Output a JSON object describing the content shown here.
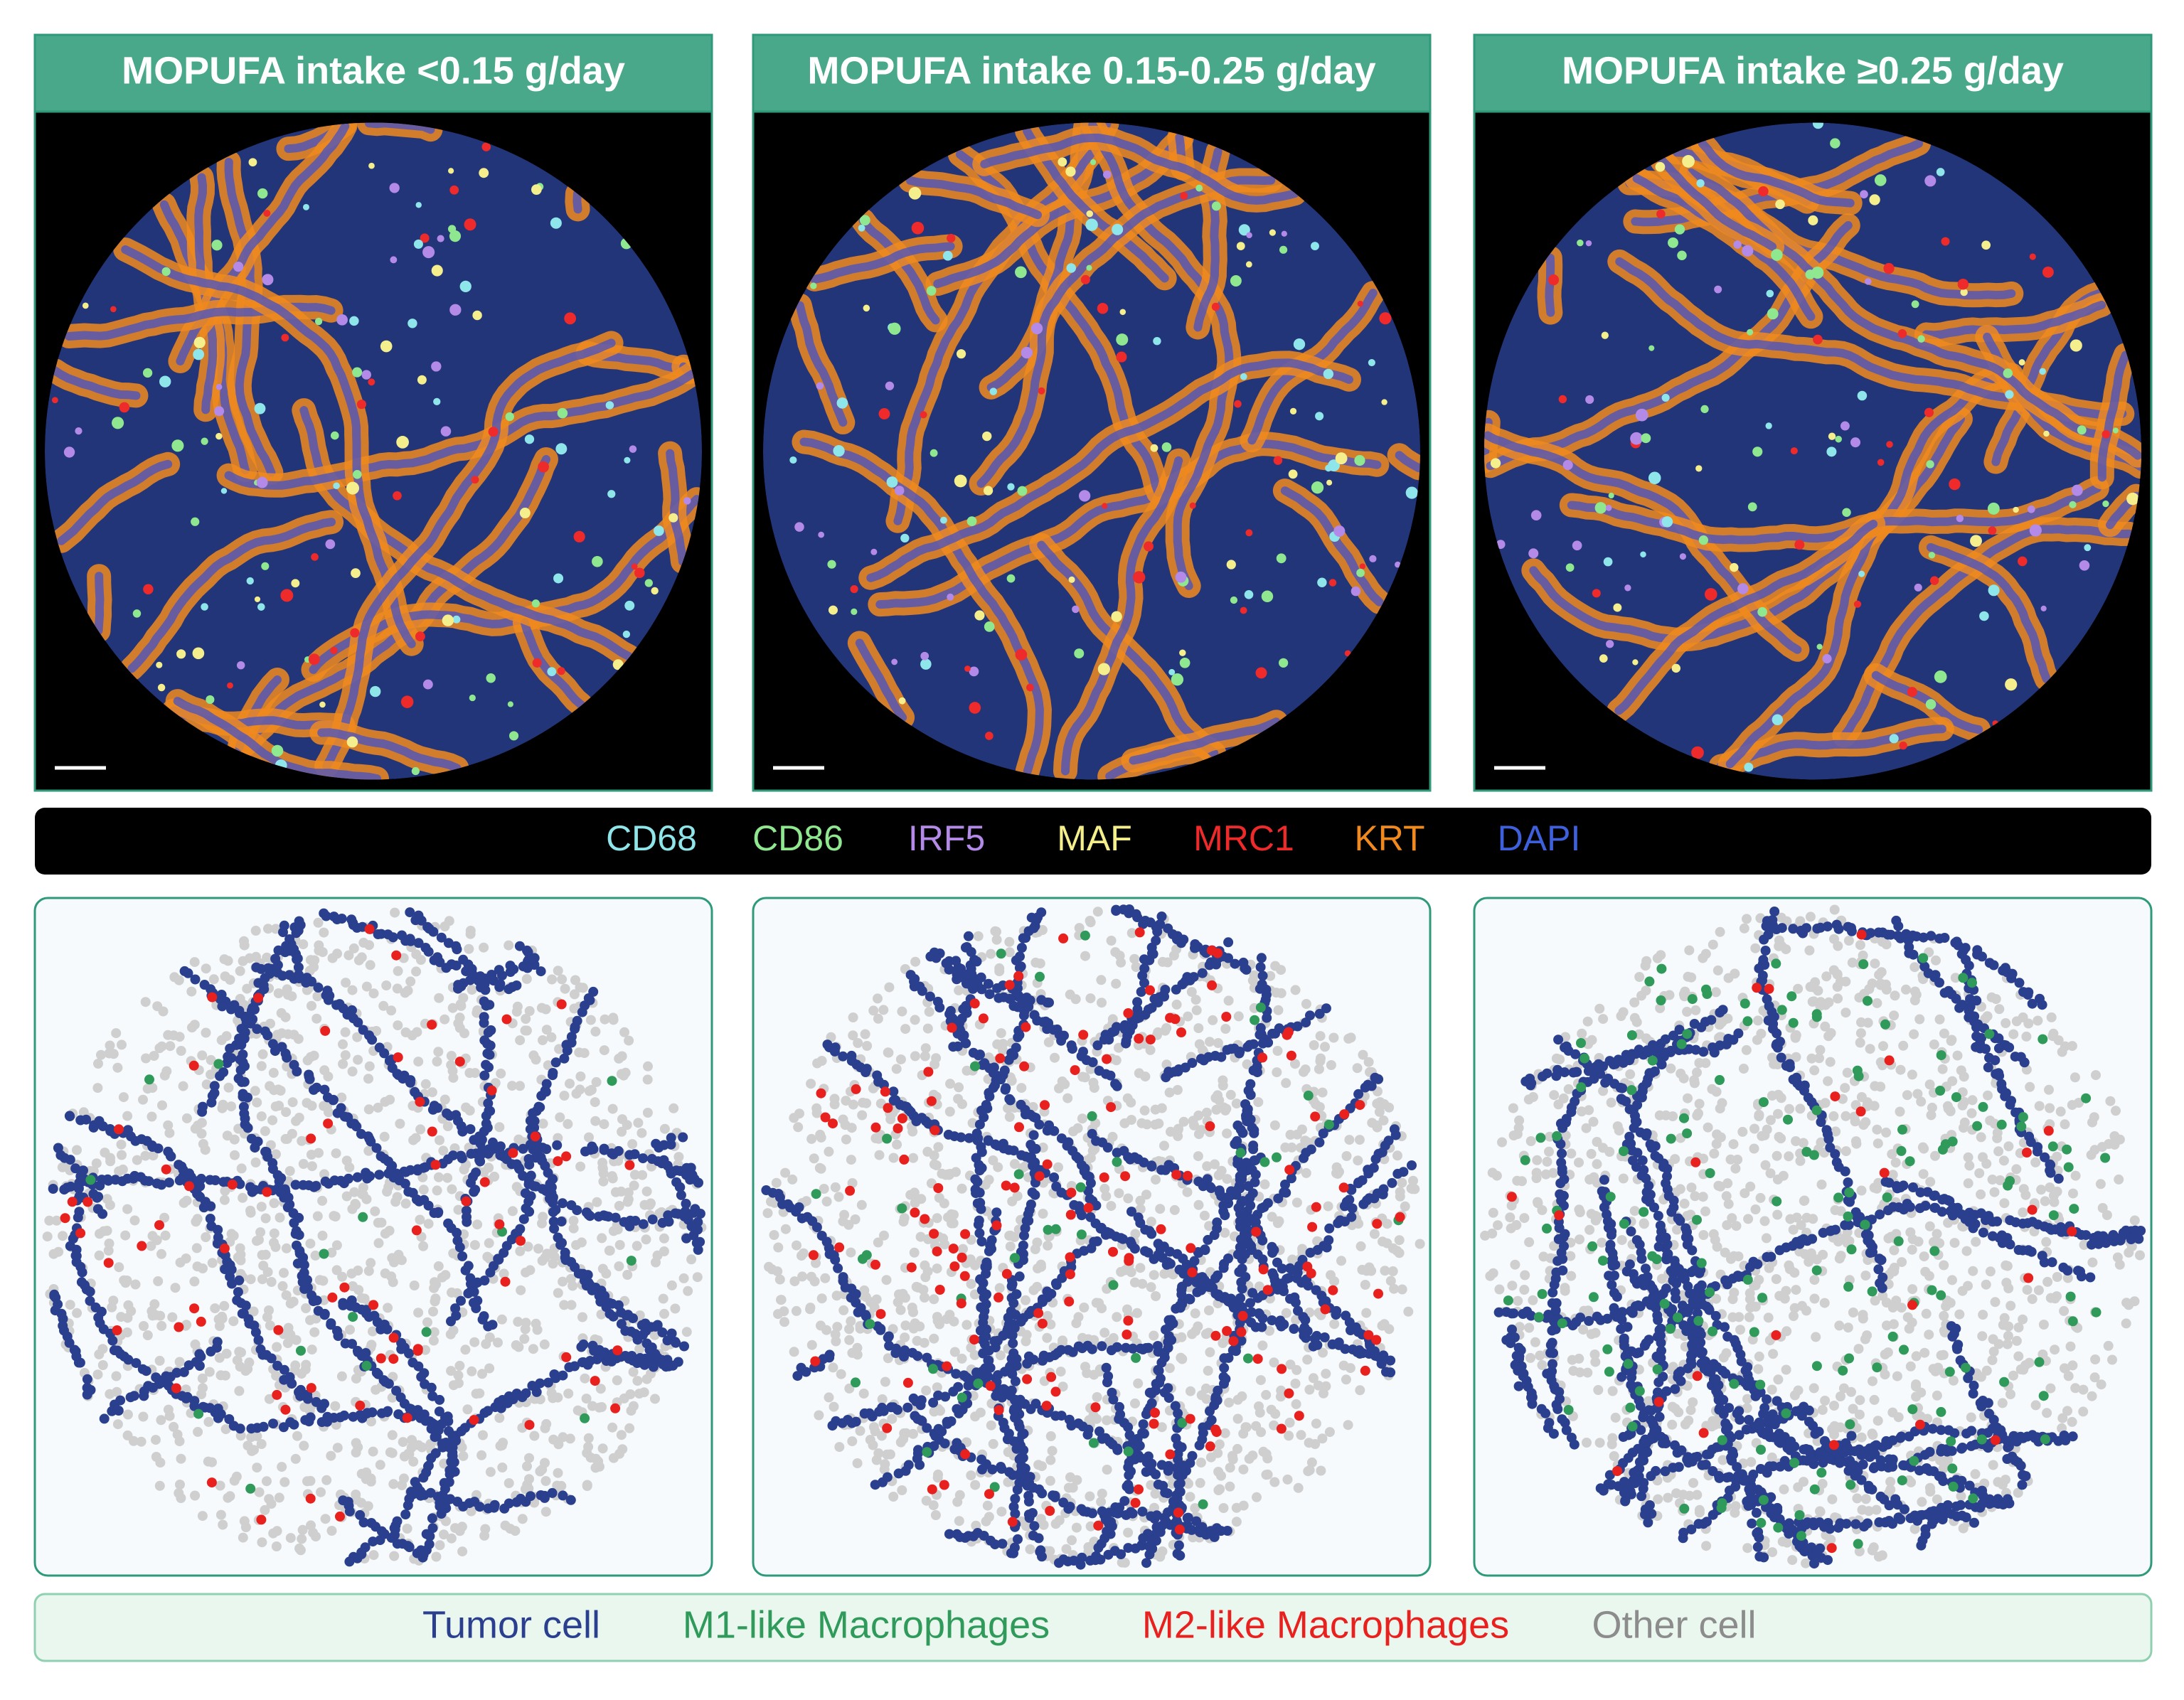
{
  "panels": [
    {
      "title": "MOPUFA intake <0.15 g/day"
    },
    {
      "title": "MOPUFA intake 0.15-0.25 g/day"
    },
    {
      "title": "MOPUFA intake ≥0.25 g/day"
    }
  ],
  "markers": [
    {
      "label": "CD68",
      "color": "#8ee6ea"
    },
    {
      "label": "CD86",
      "color": "#8fe88f"
    },
    {
      "label": "IRF5",
      "color": "#b48ae8"
    },
    {
      "label": "MAF",
      "color": "#f4ef8c"
    },
    {
      "label": "MRC1",
      "color": "#ee2a2a"
    },
    {
      "label": "KRT",
      "color": "#f08a1e"
    },
    {
      "label": "DAPI",
      "color": "#3f60dc"
    }
  ],
  "cell_types": [
    {
      "label": "Tumor cell",
      "color": "#2b3f8f"
    },
    {
      "label": "M1-like Macrophages",
      "color": "#2f9a5a"
    },
    {
      "label": "M2-like Macrophages",
      "color": "#e8201e"
    },
    {
      "label": "Other cell",
      "color": "#8c8c8c"
    }
  ]
}
